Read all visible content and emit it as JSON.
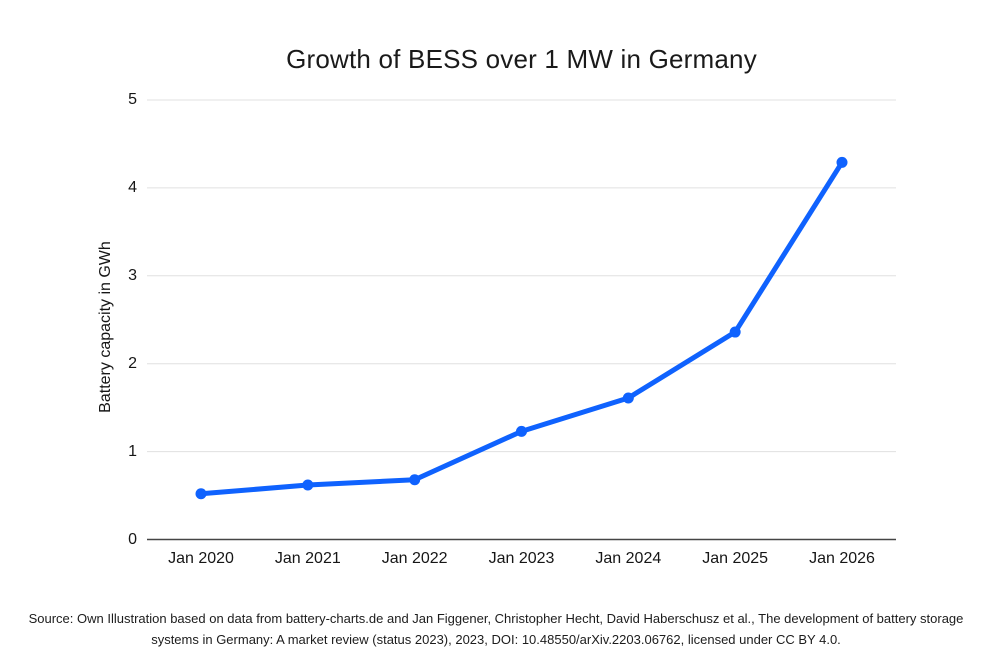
{
  "chart_data": {
    "type": "line",
    "title": "Growth of BESS over 1 MW in Germany",
    "xlabel": "",
    "ylabel": "Battery capacity in GWh",
    "categories": [
      "Jan 2020",
      "Jan 2021",
      "Jan 2022",
      "Jan 2023",
      "Jan 2024",
      "Jan 2025",
      "Jan 2026"
    ],
    "series": [
      {
        "name": "Battery capacity in GWh",
        "values": [
          0.52,
          0.62,
          0.68,
          1.23,
          1.61,
          2.36,
          4.29
        ]
      }
    ],
    "y_ticks": [
      0,
      1,
      2,
      3,
      4,
      5
    ],
    "ylim": [
      0,
      5
    ],
    "grid": "horizontal",
    "legend_position": "none",
    "line_color": "#0f62fe",
    "marker": "circle"
  },
  "colors": {
    "background": "#ffffff",
    "gridline": "#e0e0e0",
    "axis_line": "#454545",
    "title_text": "#1a1a1a",
    "tick_text": "#161616",
    "source_text": "#1c1c1c"
  },
  "source_note": "Source: Own Illustration based on data from battery-charts.de and Jan Figgener, Christopher Hecht, David Haberschusz et al., The development of battery storage systems in Germany: A market review (status 2023), 2023, DOI: 10.48550/arXiv.2203.06762, licensed under CC BY 4.0."
}
